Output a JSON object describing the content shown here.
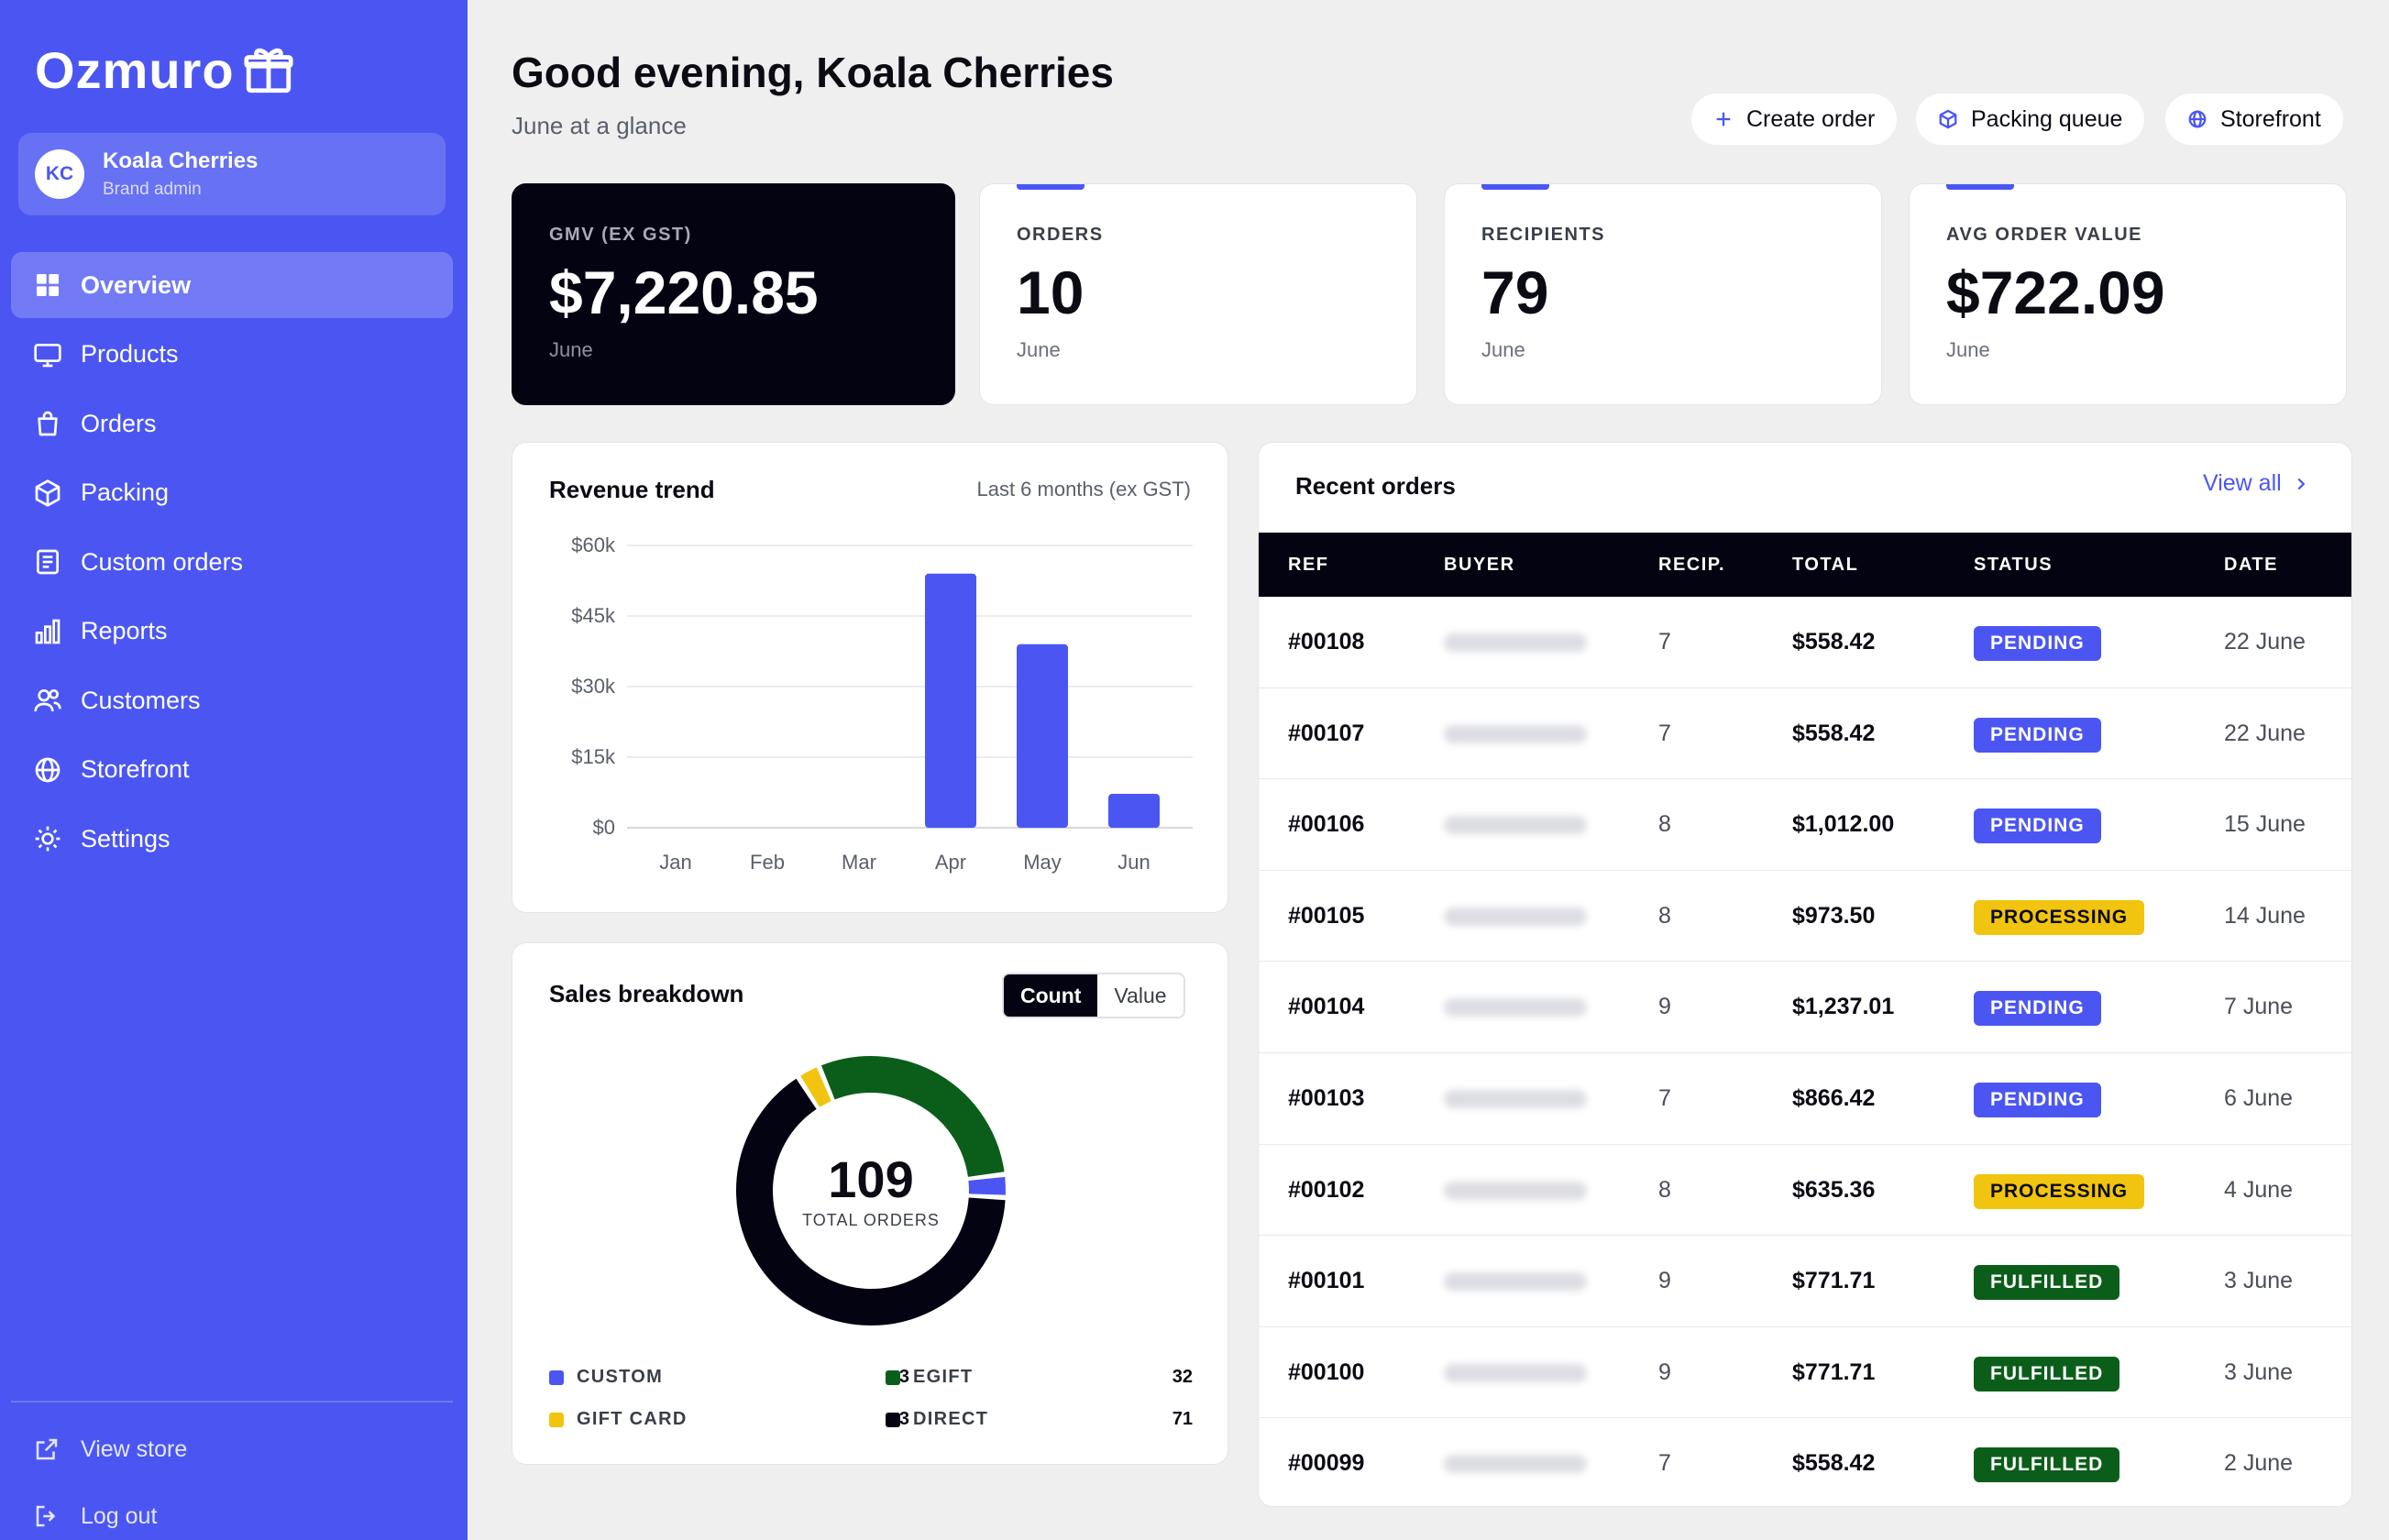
{
  "brand": {
    "name": "Ozmuro"
  },
  "user": {
    "initials": "KC",
    "name": "Koala Cherries",
    "role": "Brand admin"
  },
  "nav": [
    {
      "label": "Overview",
      "icon": "grid-icon",
      "active": true
    },
    {
      "label": "Products",
      "icon": "monitor-icon"
    },
    {
      "label": "Orders",
      "icon": "bag-icon"
    },
    {
      "label": "Packing",
      "icon": "box-icon"
    },
    {
      "label": "Custom orders",
      "icon": "document-icon"
    },
    {
      "label": "Reports",
      "icon": "bar-chart-icon"
    },
    {
      "label": "Customers",
      "icon": "users-icon"
    },
    {
      "label": "Storefront",
      "icon": "globe-icon"
    },
    {
      "label": "Settings",
      "icon": "gear-icon"
    }
  ],
  "sidebar_bottom": {
    "view_store": "View store",
    "log_out": "Log out"
  },
  "header": {
    "greeting": "Good evening, Koala Cherries",
    "subtitle": "June at a glance",
    "actions": {
      "create_order": "Create order",
      "packing_queue": "Packing queue",
      "storefront": "Storefront"
    }
  },
  "stats": [
    {
      "label": "GMV (EX GST)",
      "value": "$7,220.85",
      "sub": "June"
    },
    {
      "label": "ORDERS",
      "value": "10",
      "sub": "June"
    },
    {
      "label": "RECIPIENTS",
      "value": "79",
      "sub": "June"
    },
    {
      "label": "AVG ORDER VALUE",
      "value": "$722.09",
      "sub": "June"
    }
  ],
  "revenue": {
    "title": "Revenue trend",
    "note": "Last 6 months (ex GST)"
  },
  "chart_data": [
    {
      "type": "bar",
      "title": "Revenue trend",
      "subtitle": "Last 6 months (ex GST)",
      "categories": [
        "Jan",
        "Feb",
        "Mar",
        "Apr",
        "May",
        "Jun"
      ],
      "values": [
        0,
        0,
        0,
        54000,
        39000,
        7200
      ],
      "ylim": [
        0,
        60000
      ],
      "yticks": [
        "$0",
        "$15k",
        "$30k",
        "$45k",
        "$60k"
      ],
      "color": "#4b56f2",
      "grid": true
    },
    {
      "type": "pie",
      "title": "Sales breakdown",
      "center_value": "109",
      "center_label": "TOTAL ORDERS",
      "slices": [
        {
          "name": "CUSTOM",
          "value": 3,
          "color": "#4b56f2"
        },
        {
          "name": "DIRECT",
          "value": 71,
          "color": "#030311"
        },
        {
          "name": "GIFT CARD",
          "value": 3,
          "color": "#f1c40f"
        },
        {
          "name": "EGIFT",
          "value": 32,
          "color": "#0b5e1a"
        }
      ]
    }
  ],
  "breakdown": {
    "title": "Sales breakdown",
    "toggle": {
      "count": "Count",
      "value": "Value"
    },
    "center_value": "109",
    "center_label": "TOTAL ORDERS",
    "legend": [
      {
        "name": "CUSTOM",
        "value": "3",
        "color": "#4b56f2"
      },
      {
        "name": "EGIFT",
        "value": "32",
        "color": "#0b5e1a"
      },
      {
        "name": "GIFT CARD",
        "value": "3",
        "color": "#f1c40f"
      },
      {
        "name": "DIRECT",
        "value": "71",
        "color": "#030311"
      }
    ]
  },
  "orders": {
    "title": "Recent orders",
    "view_all": "View all",
    "columns": [
      "REF",
      "BUYER",
      "RECIP.",
      "TOTAL",
      "STATUS",
      "DATE"
    ],
    "rows": [
      {
        "ref": "#00108",
        "recip": "7",
        "total": "$558.42",
        "status": "PENDING",
        "date": "22 June"
      },
      {
        "ref": "#00107",
        "recip": "7",
        "total": "$558.42",
        "status": "PENDING",
        "date": "22 June"
      },
      {
        "ref": "#00106",
        "recip": "8",
        "total": "$1,012.00",
        "status": "PENDING",
        "date": "15 June"
      },
      {
        "ref": "#00105",
        "recip": "8",
        "total": "$973.50",
        "status": "PROCESSING",
        "date": "14 June"
      },
      {
        "ref": "#00104",
        "recip": "9",
        "total": "$1,237.01",
        "status": "PENDING",
        "date": "7 June"
      },
      {
        "ref": "#00103",
        "recip": "7",
        "total": "$866.42",
        "status": "PENDING",
        "date": "6 June"
      },
      {
        "ref": "#00102",
        "recip": "8",
        "total": "$635.36",
        "status": "PROCESSING",
        "date": "4 June"
      },
      {
        "ref": "#00101",
        "recip": "9",
        "total": "$771.71",
        "status": "FULFILLED",
        "date": "3 June"
      },
      {
        "ref": "#00100",
        "recip": "9",
        "total": "$771.71",
        "status": "FULFILLED",
        "date": "3 June"
      },
      {
        "ref": "#00099",
        "recip": "7",
        "total": "$558.42",
        "status": "FULFILLED",
        "date": "2 June"
      }
    ]
  }
}
